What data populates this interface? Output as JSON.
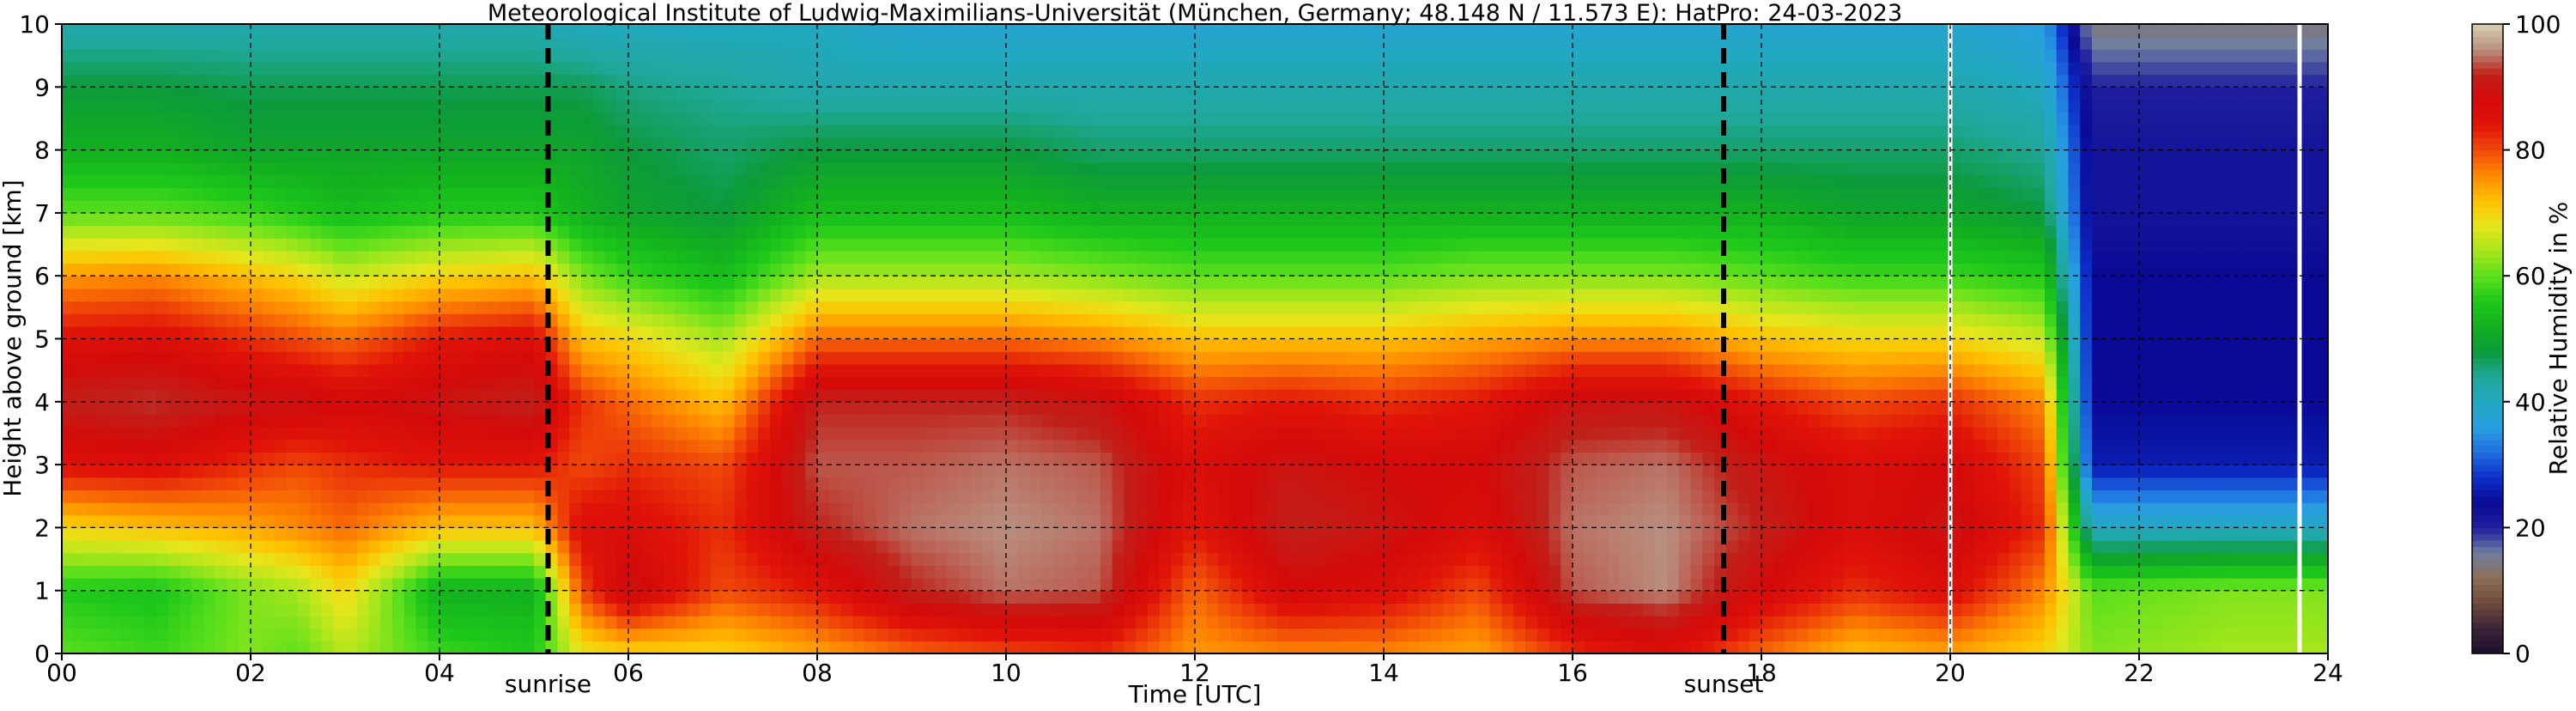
{
  "chart_data": {
    "type": "heatmap",
    "title": "Meteorological Institute of Ludwig-Maximilians-Universität (München, Germany; 48.148 N / 11.573 E):    HatPro: 24-03-2023",
    "xlabel": "Time [UTC]",
    "ylabel": "Height above ground [km]",
    "xlim": [
      0,
      24
    ],
    "ylim": [
      0,
      10
    ],
    "x_ticks": [
      "00",
      "02",
      "04",
      "06",
      "08",
      "10",
      "12",
      "14",
      "16",
      "18",
      "20",
      "22",
      "24"
    ],
    "y_ticks": [
      "0",
      "1",
      "2",
      "3",
      "4",
      "5",
      "6",
      "7",
      "8",
      "9",
      "10"
    ],
    "grid": true,
    "colorbar": {
      "label": "Relative Humidity in %",
      "range": [
        0,
        100
      ],
      "ticks": [
        "0",
        "20",
        "40",
        "60",
        "80",
        "100"
      ],
      "colors": [
        "#1c0f2c",
        "#3a2436",
        "#6e4a3c",
        "#8d6e56",
        "#6f7fa0",
        "#1e1e9e",
        "#0a0a96",
        "#0d2fc8",
        "#1f6fe0",
        "#28a0e0",
        "#22a8c0",
        "#1fa89a",
        "#0c9a3a",
        "#12b01e",
        "#1ec81a",
        "#5ae01c",
        "#a8e61c",
        "#e6e61c",
        "#ffc000",
        "#ff8a00",
        "#f04a08",
        "#e01408",
        "#d40a0a",
        "#c02018",
        "#b89080",
        "#d8d0b0"
      ]
    },
    "annotations": [
      {
        "text": "sunrise",
        "x": 5.15
      },
      {
        "text": "sunset",
        "x": 17.6
      }
    ],
    "markers": [
      {
        "kind": "dashed-line",
        "x": 5.15,
        "color": "#000000"
      },
      {
        "kind": "dashed-line",
        "x": 17.6,
        "color": "#000000"
      },
      {
        "kind": "data-gap",
        "x": 20.0,
        "color": "#ffffff"
      },
      {
        "kind": "data-gap",
        "x": 23.7,
        "color": "#ffffff"
      }
    ],
    "series": [
      {
        "x": 0.0,
        "rh": [
          60,
          56,
          70,
          85,
          92,
          85,
          75,
          60,
          52,
          48,
          42
        ]
      },
      {
        "x": 1.0,
        "rh": [
          58,
          55,
          72,
          86,
          93,
          86,
          76,
          60,
          52,
          48,
          42
        ]
      },
      {
        "x": 2.0,
        "rh": [
          62,
          62,
          74,
          82,
          90,
          82,
          72,
          58,
          50,
          47,
          42
        ]
      },
      {
        "x": 2.5,
        "rh": [
          60,
          64,
          76,
          80,
          90,
          80,
          70,
          56,
          50,
          47,
          42
        ]
      },
      {
        "x": 3.0,
        "rh": [
          65,
          70,
          78,
          82,
          88,
          78,
          66,
          54,
          50,
          47,
          42
        ]
      },
      {
        "x": 4.0,
        "rh": [
          58,
          52,
          72,
          84,
          90,
          84,
          70,
          56,
          50,
          47,
          42
        ]
      },
      {
        "x": 5.0,
        "rh": [
          56,
          52,
          72,
          84,
          92,
          86,
          72,
          56,
          50,
          47,
          42
        ]
      },
      {
        "x": 5.5,
        "rh": [
          68,
          80,
          86,
          80,
          82,
          72,
          62,
          52,
          50,
          47,
          40
        ]
      },
      {
        "x": 6.0,
        "rh": [
          70,
          90,
          86,
          82,
          78,
          70,
          58,
          50,
          48,
          45,
          40
        ]
      },
      {
        "x": 7.0,
        "rh": [
          70,
          80,
          82,
          80,
          72,
          64,
          54,
          48,
          46,
          44,
          40
        ]
      },
      {
        "x": 8.0,
        "rh": [
          74,
          84,
          92,
          94,
          92,
          78,
          64,
          54,
          48,
          42,
          40
        ]
      },
      {
        "x": 9.0,
        "rh": [
          78,
          92,
          95,
          94,
          92,
          78,
          64,
          54,
          48,
          42,
          38
        ]
      },
      {
        "x": 10.0,
        "rh": [
          80,
          95,
          96,
          95,
          92,
          78,
          64,
          54,
          48,
          42,
          38
        ]
      },
      {
        "x": 11.0,
        "rh": [
          82,
          94,
          95,
          94,
          90,
          76,
          62,
          52,
          46,
          42,
          38
        ]
      },
      {
        "x": 12.0,
        "rh": [
          75,
          78,
          84,
          86,
          82,
          72,
          60,
          52,
          46,
          42,
          38
        ]
      },
      {
        "x": 13.0,
        "rh": [
          76,
          88,
          92,
          90,
          84,
          72,
          60,
          52,
          46,
          42,
          38
        ]
      },
      {
        "x": 14.0,
        "rh": [
          76,
          86,
          90,
          88,
          82,
          72,
          60,
          52,
          46,
          42,
          38
        ]
      },
      {
        "x": 15.0,
        "rh": [
          74,
          80,
          86,
          88,
          84,
          74,
          62,
          52,
          46,
          42,
          38
        ]
      },
      {
        "x": 16.0,
        "rh": [
          82,
          94,
          95,
          94,
          90,
          76,
          62,
          52,
          46,
          42,
          38
        ]
      },
      {
        "x": 17.0,
        "rh": [
          86,
          96,
          96,
          95,
          90,
          76,
          62,
          52,
          46,
          42,
          38
        ]
      },
      {
        "x": 18.0,
        "rh": [
          78,
          88,
          92,
          90,
          84,
          72,
          60,
          52,
          46,
          42,
          38
        ]
      },
      {
        "x": 19.0,
        "rh": [
          72,
          82,
          86,
          86,
          80,
          70,
          58,
          50,
          46,
          42,
          38
        ]
      },
      {
        "x": 20.0,
        "rh": [
          74,
          86,
          90,
          88,
          82,
          70,
          58,
          50,
          46,
          42,
          38
        ]
      },
      {
        "x": 21.0,
        "rh": [
          70,
          76,
          82,
          80,
          76,
          66,
          56,
          48,
          44,
          40,
          36
        ]
      },
      {
        "x": 21.5,
        "rh": [
          62,
          60,
          40,
          26,
          24,
          24,
          24,
          22,
          22,
          20,
          14
        ]
      },
      {
        "x": 23.0,
        "rh": [
          64,
          62,
          40,
          26,
          24,
          24,
          24,
          22,
          22,
          20,
          14
        ]
      },
      {
        "x": 24.0,
        "rh": [
          64,
          62,
          40,
          26,
          24,
          24,
          24,
          22,
          22,
          20,
          14
        ]
      }
    ]
  }
}
